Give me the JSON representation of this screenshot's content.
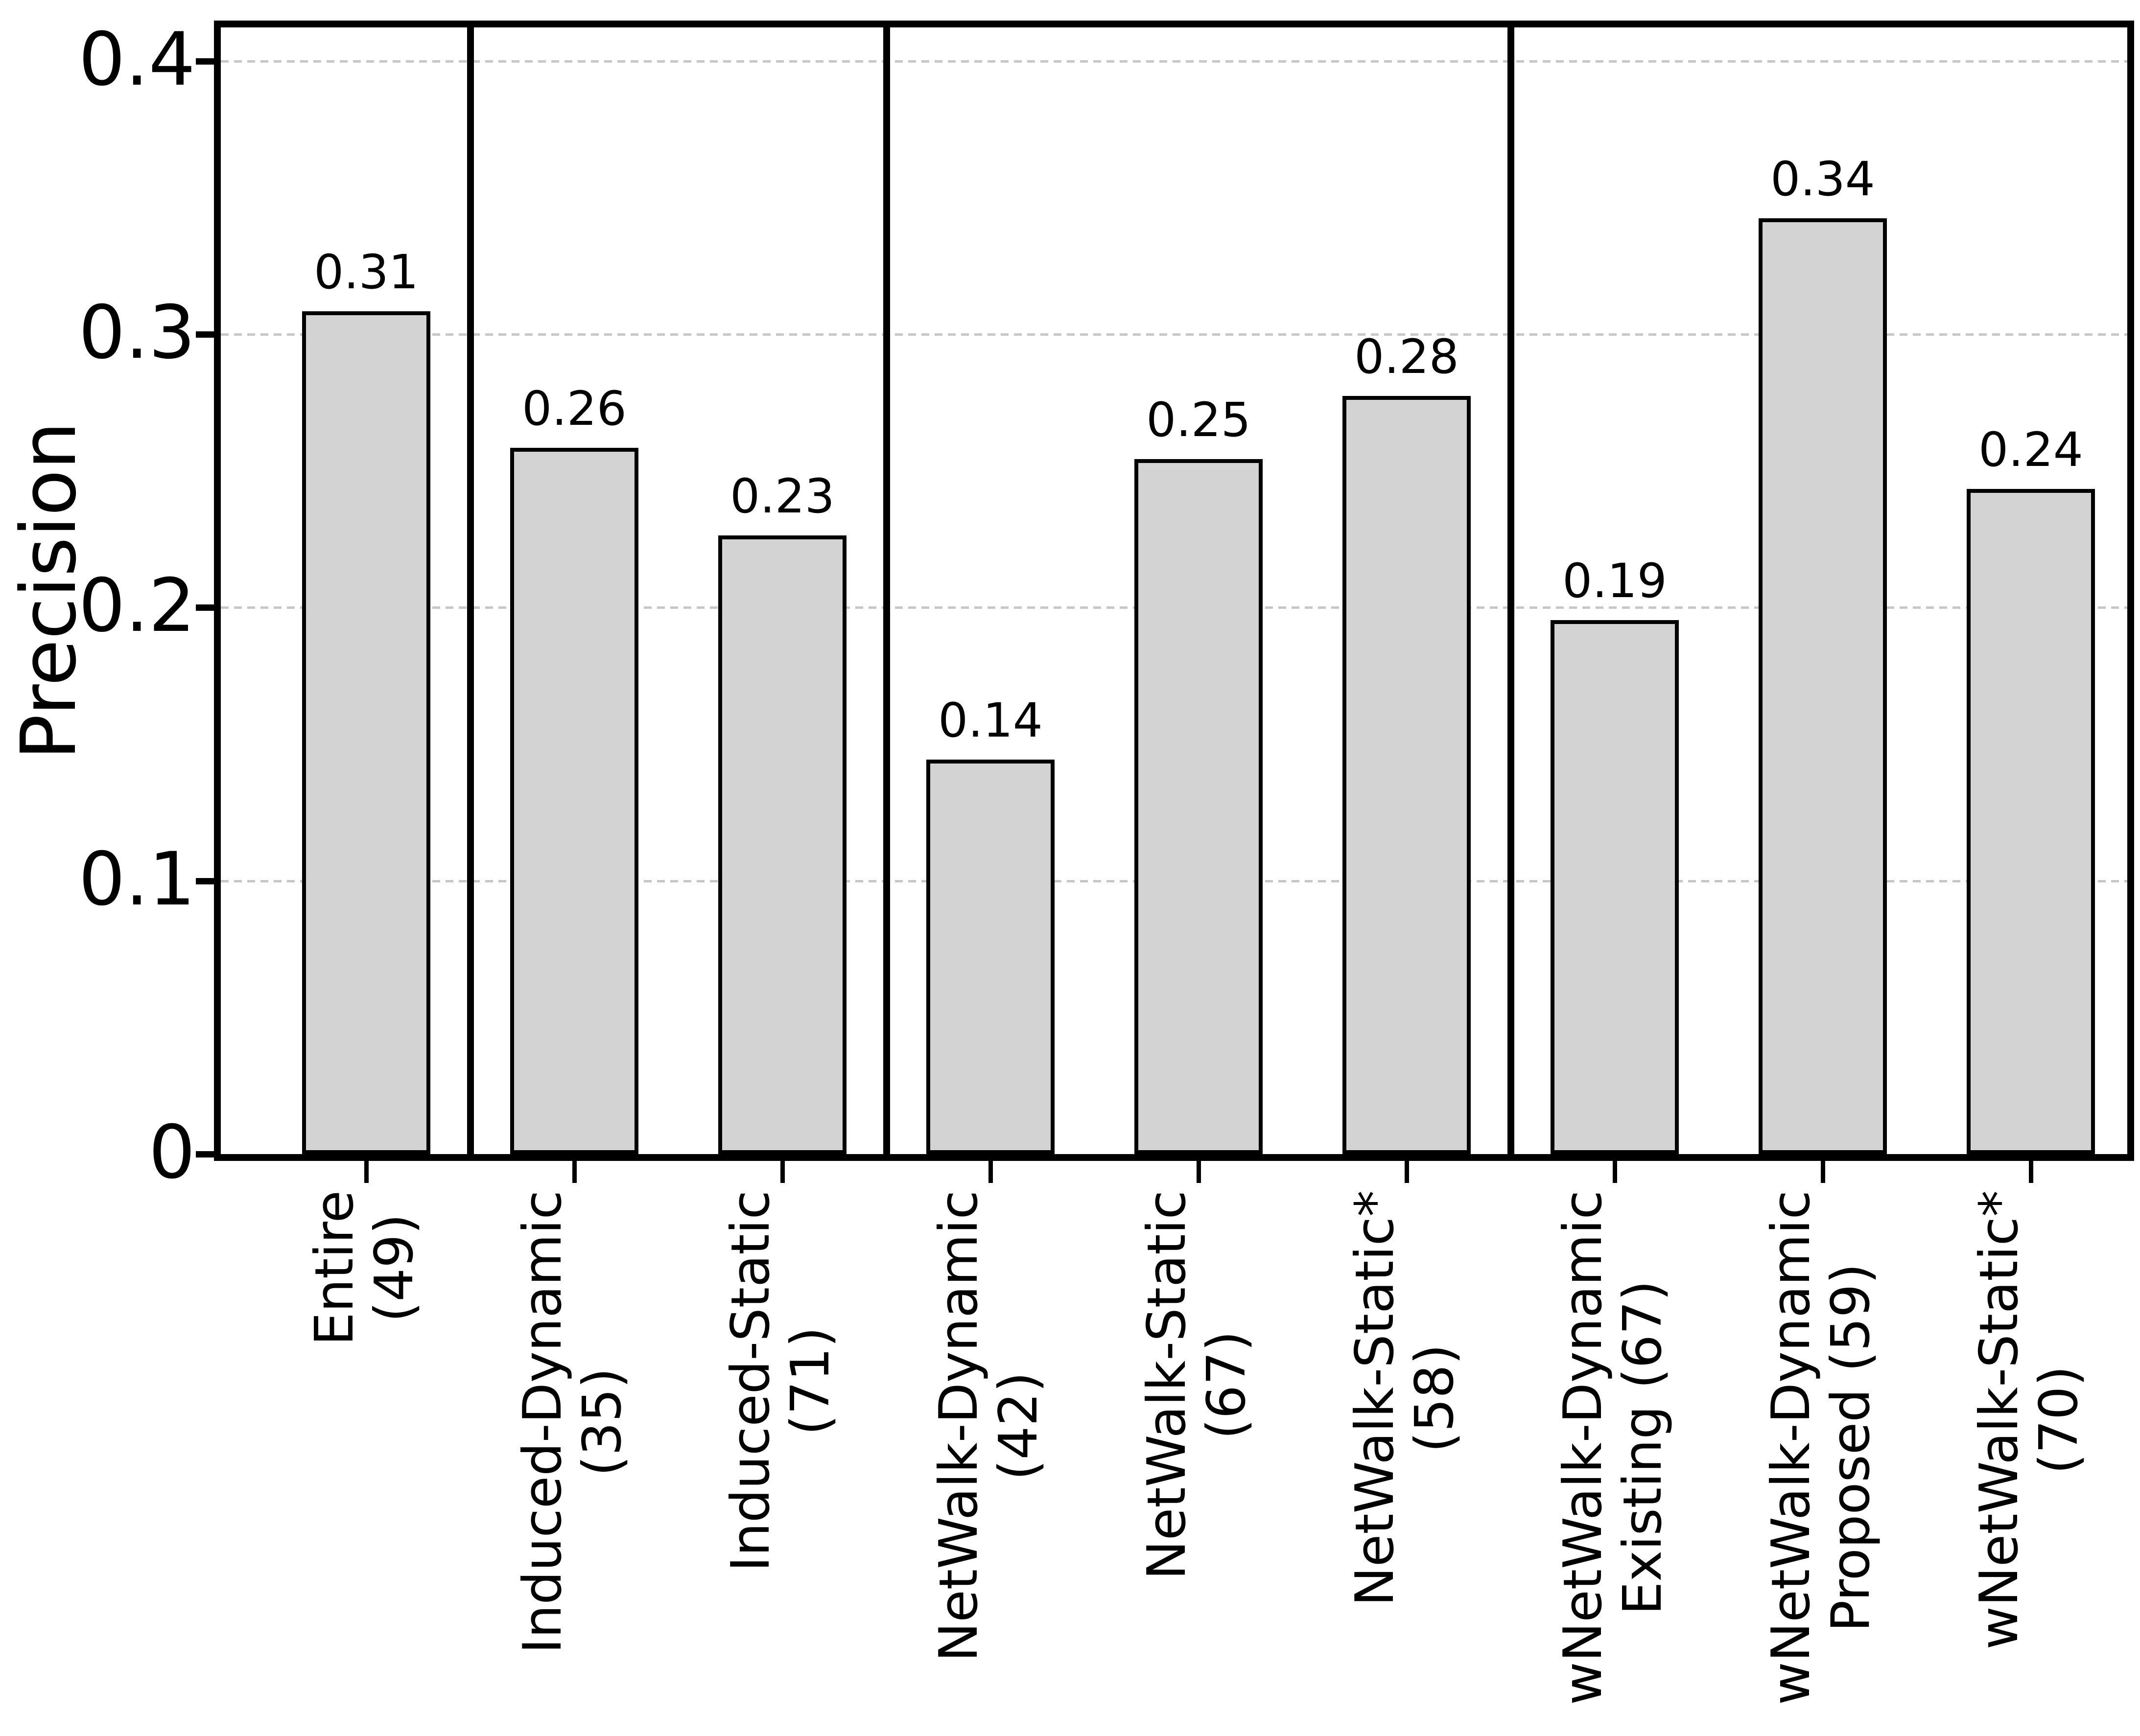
{
  "chart_data": {
    "type": "bar",
    "title": "",
    "xlabel": "",
    "ylabel": "Precision",
    "ylim": [
      0,
      0.412
    ],
    "yticks": [
      0,
      0.1,
      0.2,
      0.3,
      0.4
    ],
    "ytick_labels": [
      "0",
      "0.1",
      "0.2",
      "0.3",
      "0.4"
    ],
    "grid": "horizontal dashed gridlines at each y tick",
    "legend": "none",
    "bar_fill_color": "#d3d3d3",
    "bar_edge_color": "#000000",
    "gridline_color": "#c7c7c7",
    "categories": [
      {
        "label_line1": "Entire",
        "label_line2": "(49)",
        "value": 0.307,
        "value_label": "0.31"
      },
      {
        "label_line1": "Induced-Dynamic",
        "label_line2": "(35)",
        "value": 0.257,
        "value_label": "0.26"
      },
      {
        "label_line1": "Induced-Static",
        "label_line2": "(71)",
        "value": 0.225,
        "value_label": "0.23"
      },
      {
        "label_line1": "NetWalk-Dynamic",
        "label_line2": "(42)",
        "value": 0.143,
        "value_label": "0.14"
      },
      {
        "label_line1": "NetWalk-Static",
        "label_line2": "(67)",
        "value": 0.253,
        "value_label": "0.25"
      },
      {
        "label_line1": "NetWalk-Static*",
        "label_line2": "(58)",
        "value": 0.276,
        "value_label": "0.28"
      },
      {
        "label_line1": "wNetWalk-Dynamic",
        "label_line2": "Existing (67)",
        "value": 0.194,
        "value_label": "0.19"
      },
      {
        "label_line1": "wNetWalk-Dynamic",
        "label_line2": "Proposed (59)",
        "value": 0.341,
        "value_label": "0.34"
      },
      {
        "label_line1": "wNetWalk-Static*",
        "label_line2": "(70)",
        "value": 0.242,
        "value_label": "0.24"
      }
    ],
    "group_separators_after_category_index": [
      0,
      2,
      5
    ]
  }
}
